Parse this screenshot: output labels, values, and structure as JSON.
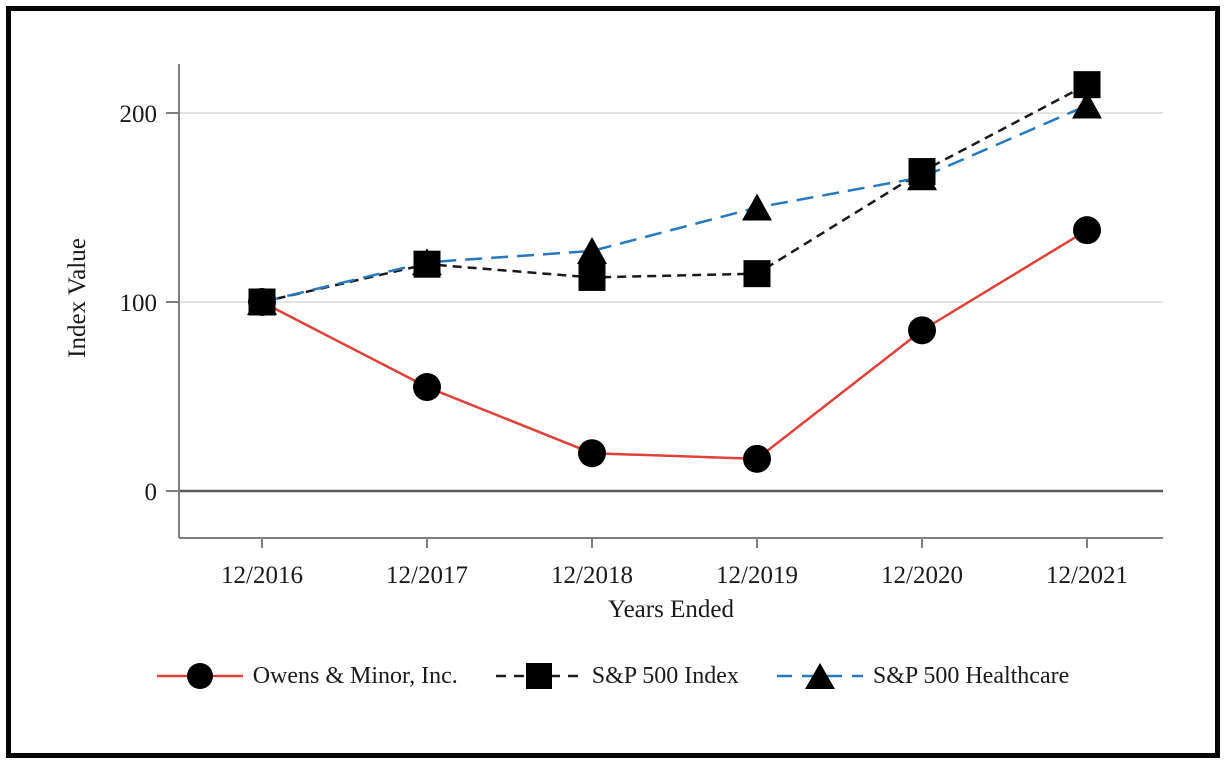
{
  "figure": {
    "background": "#ffffff",
    "border_color": "#050505"
  },
  "chart_data": {
    "type": "line",
    "title": "",
    "xlabel": "Years Ended",
    "ylabel": "Index Value",
    "categories": [
      "12/2016",
      "12/2017",
      "12/2018",
      "12/2019",
      "12/2020",
      "12/2021"
    ],
    "yticks": [
      0,
      100,
      200
    ],
    "ylim": [
      -25,
      226
    ],
    "grid": "horizontal-light",
    "legend_position": "bottom-center",
    "marker_color": "#000000",
    "axis_color": "#7f7f7f",
    "zero_line_color": "#595959",
    "grid_color": "#dcdcdc",
    "series": [
      {
        "name": "Owens & Minor, Inc.",
        "marker": "circle",
        "line_style": "solid",
        "color": "#e0403a",
        "values": [
          100,
          55,
          20,
          17,
          85,
          138
        ]
      },
      {
        "name": "S&P 500 Index",
        "marker": "square",
        "line_style": "dashed",
        "color": "#1a1a1a",
        "values": [
          100,
          120,
          113,
          115,
          169,
          215
        ]
      },
      {
        "name": "S&P 500 Healthcare",
        "marker": "triangle",
        "line_style": "long-dashed",
        "color": "#2878be",
        "values": [
          100,
          121,
          127,
          150,
          166,
          204
        ]
      }
    ]
  }
}
